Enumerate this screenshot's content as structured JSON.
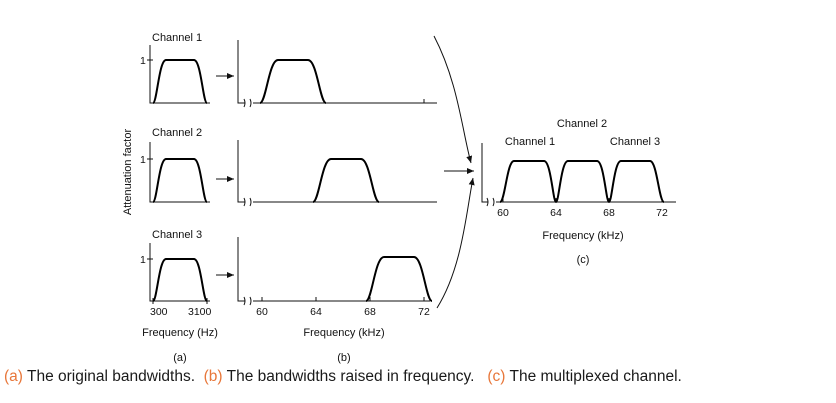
{
  "ylabel": "Attenuation factor",
  "panel_a": {
    "channels": [
      "Channel 1",
      "Channel 2",
      "Channel 3"
    ],
    "ytick": "1",
    "xticks": [
      "300",
      "3100"
    ],
    "xlabel": "Frequency (Hz)",
    "tag": "(a)"
  },
  "panel_b": {
    "xticks": [
      "60",
      "64",
      "68",
      "72"
    ],
    "xlabel": "Frequency (kHz)",
    "tag": "(b)"
  },
  "panel_c": {
    "labels": [
      "Channel 2",
      "Channel 1",
      "Channel 3"
    ],
    "xticks": [
      "60",
      "64",
      "68",
      "72"
    ],
    "xlabel": "Frequency (kHz)",
    "tag": "(c)"
  },
  "caption": {
    "a_key": "(a)",
    "a_text": " The original bandwidths.",
    "b_key": "(b)",
    "b_text": " The bandwidths raised in frequency.",
    "c_key": "(c)",
    "c_text": " The multiplexed channel."
  }
}
